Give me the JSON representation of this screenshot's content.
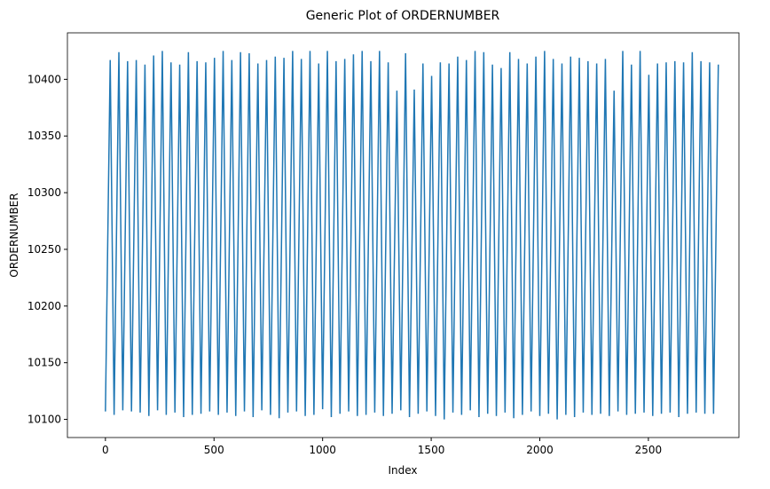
{
  "chart_data": {
    "type": "line",
    "title": "Generic Plot of ORDERNUMBER",
    "x_label": "Index",
    "y_label": "ORDERNUMBER",
    "color": "#1f77b4",
    "x": [
      0,
      22,
      40,
      62,
      80,
      102,
      120,
      142,
      160,
      182,
      200,
      222,
      240,
      262,
      280,
      302,
      320,
      342,
      360,
      382,
      400,
      422,
      440,
      462,
      480,
      502,
      520,
      542,
      560,
      582,
      600,
      622,
      640,
      662,
      680,
      702,
      720,
      742,
      760,
      782,
      800,
      822,
      840,
      862,
      880,
      902,
      920,
      942,
      960,
      982,
      1000,
      1022,
      1040,
      1062,
      1080,
      1102,
      1120,
      1142,
      1160,
      1182,
      1200,
      1222,
      1240,
      1262,
      1280,
      1302,
      1320,
      1342,
      1360,
      1382,
      1400,
      1422,
      1440,
      1462,
      1480,
      1502,
      1520,
      1542,
      1560,
      1582,
      1600,
      1622,
      1640,
      1662,
      1680,
      1702,
      1720,
      1742,
      1760,
      1782,
      1800,
      1822,
      1840,
      1862,
      1880,
      1902,
      1920,
      1942,
      1960,
      1982,
      2000,
      2022,
      2040,
      2062,
      2080,
      2102,
      2120,
      2142,
      2160,
      2182,
      2200,
      2222,
      2240,
      2262,
      2280,
      2302,
      2320,
      2342,
      2360,
      2382,
      2400,
      2422,
      2440,
      2462,
      2480,
      2502,
      2520,
      2542,
      2560,
      2582,
      2600,
      2622,
      2640,
      2662,
      2680,
      2702,
      2720,
      2742,
      2760,
      2782,
      2800,
      2822
    ],
    "values": [
      10107,
      10417,
      10104,
      10424,
      10108,
      10416,
      10107,
      10417,
      10106,
      10413,
      10103,
      10421,
      10108,
      10425,
      10104,
      10415,
      10106,
      10413,
      10102,
      10424,
      10104,
      10416,
      10105,
      10415,
      10107,
      10419,
      10104,
      10425,
      10106,
      10417,
      10103,
      10424,
      10107,
      10423,
      10102,
      10414,
      10108,
      10417,
      10104,
      10420,
      10101,
      10419,
      10106,
      10425,
      10107,
      10418,
      10103,
      10425,
      10104,
      10414,
      10109,
      10425,
      10102,
      10416,
      10105,
      10418,
      10107,
      10422,
      10103,
      10425,
      10104,
      10416,
      10106,
      10425,
      10103,
      10415,
      10105,
      10390,
      10108,
      10423,
      10102,
      10391,
      10105,
      10414,
      10107,
      10403,
      10103,
      10415,
      10100,
      10414,
      10106,
      10420,
      10104,
      10417,
      10108,
      10425,
      10102,
      10424,
      10105,
      10413,
      10103,
      10410,
      10106,
      10424,
      10101,
      10418,
      10104,
      10414,
      10107,
      10420,
      10103,
      10425,
      10105,
      10418,
      10100,
      10414,
      10104,
      10420,
      10102,
      10419,
      10106,
      10416,
      10104,
      10414,
      10105,
      10418,
      10103,
      10390,
      10107,
      10425,
      10104,
      10413,
      10105,
      10425,
      10106,
      10404,
      10103,
      10414,
      10105,
      10415,
      10106,
      10416,
      10102,
      10415,
      10105,
      10424,
      10106,
      10416,
      10105,
      10415,
      10105,
      10413
    ],
    "xlim": [
      -175,
      2917
    ],
    "ylim": [
      10084,
      10441
    ],
    "xticks": [
      0,
      500,
      1000,
      1500,
      2000,
      2500
    ],
    "yticks": [
      10100,
      10150,
      10200,
      10250,
      10300,
      10350,
      10400
    ]
  }
}
